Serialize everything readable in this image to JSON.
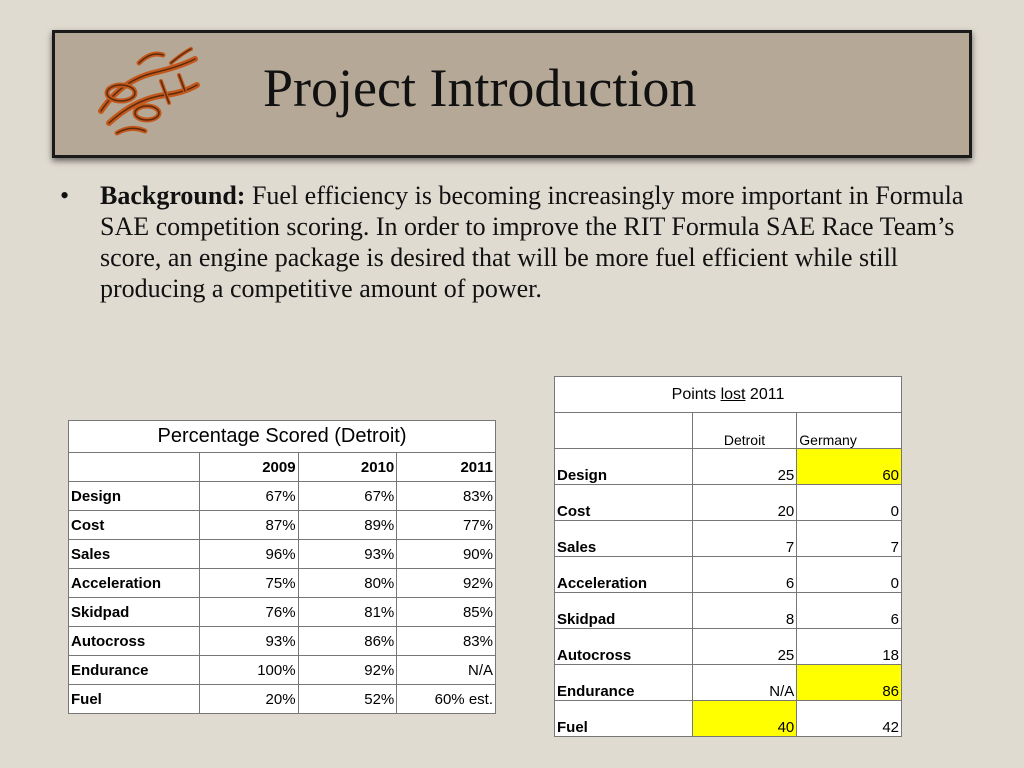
{
  "slide": {
    "title": "Project Introduction",
    "logo_icon": "race-car-sketch-logo"
  },
  "bullet": {
    "heading": "Background:",
    "text": " Fuel efficiency is becoming increasingly more important in Formula SAE competition scoring. In order to improve the RIT Formula SAE Race Team’s score, an engine package is desired that will be more fuel efficient while still producing a competitive amount of power."
  },
  "percentage_table": {
    "title": "Percentage Scored (Detroit)",
    "columns": [
      "",
      "2009",
      "2010",
      "2011"
    ],
    "rows": [
      {
        "label": "Design",
        "values": [
          "67%",
          "67%",
          "83%"
        ]
      },
      {
        "label": "Cost",
        "values": [
          "87%",
          "89%",
          "77%"
        ]
      },
      {
        "label": "Sales",
        "values": [
          "96%",
          "93%",
          "90%"
        ]
      },
      {
        "label": "Acceleration",
        "values": [
          "75%",
          "80%",
          "92%"
        ]
      },
      {
        "label": "Skidpad",
        "values": [
          "76%",
          "81%",
          "85%"
        ]
      },
      {
        "label": "Autocross",
        "values": [
          "93%",
          "86%",
          "83%"
        ]
      },
      {
        "label": "Endurance",
        "values": [
          "100%",
          "92%",
          "N/A"
        ]
      },
      {
        "label": "Fuel",
        "values": [
          "20%",
          "52%",
          "60% est."
        ]
      }
    ]
  },
  "points_table": {
    "title_prefix": "Points ",
    "title_underlined": "lost",
    "title_suffix": " 2011",
    "columns": [
      "",
      "Detroit",
      "Germany"
    ],
    "highlight_color": "#ffff00",
    "rows": [
      {
        "label": "Design",
        "values": [
          "25",
          "60"
        ],
        "highlight": [
          false,
          true
        ]
      },
      {
        "label": "Cost",
        "values": [
          "20",
          "0"
        ],
        "highlight": [
          false,
          false
        ]
      },
      {
        "label": "Sales",
        "values": [
          "7",
          "7"
        ],
        "highlight": [
          false,
          false
        ]
      },
      {
        "label": "Acceleration",
        "values": [
          "6",
          "0"
        ],
        "highlight": [
          false,
          false
        ]
      },
      {
        "label": "Skidpad",
        "values": [
          "8",
          "6"
        ],
        "highlight": [
          false,
          false
        ]
      },
      {
        "label": "Autocross",
        "values": [
          "25",
          "18"
        ],
        "highlight": [
          false,
          false
        ]
      },
      {
        "label": "Endurance",
        "values": [
          "N/A",
          "86"
        ],
        "highlight": [
          false,
          true
        ]
      },
      {
        "label": "Fuel",
        "values": [
          "40",
          "42"
        ],
        "highlight": [
          true,
          false
        ]
      }
    ]
  }
}
